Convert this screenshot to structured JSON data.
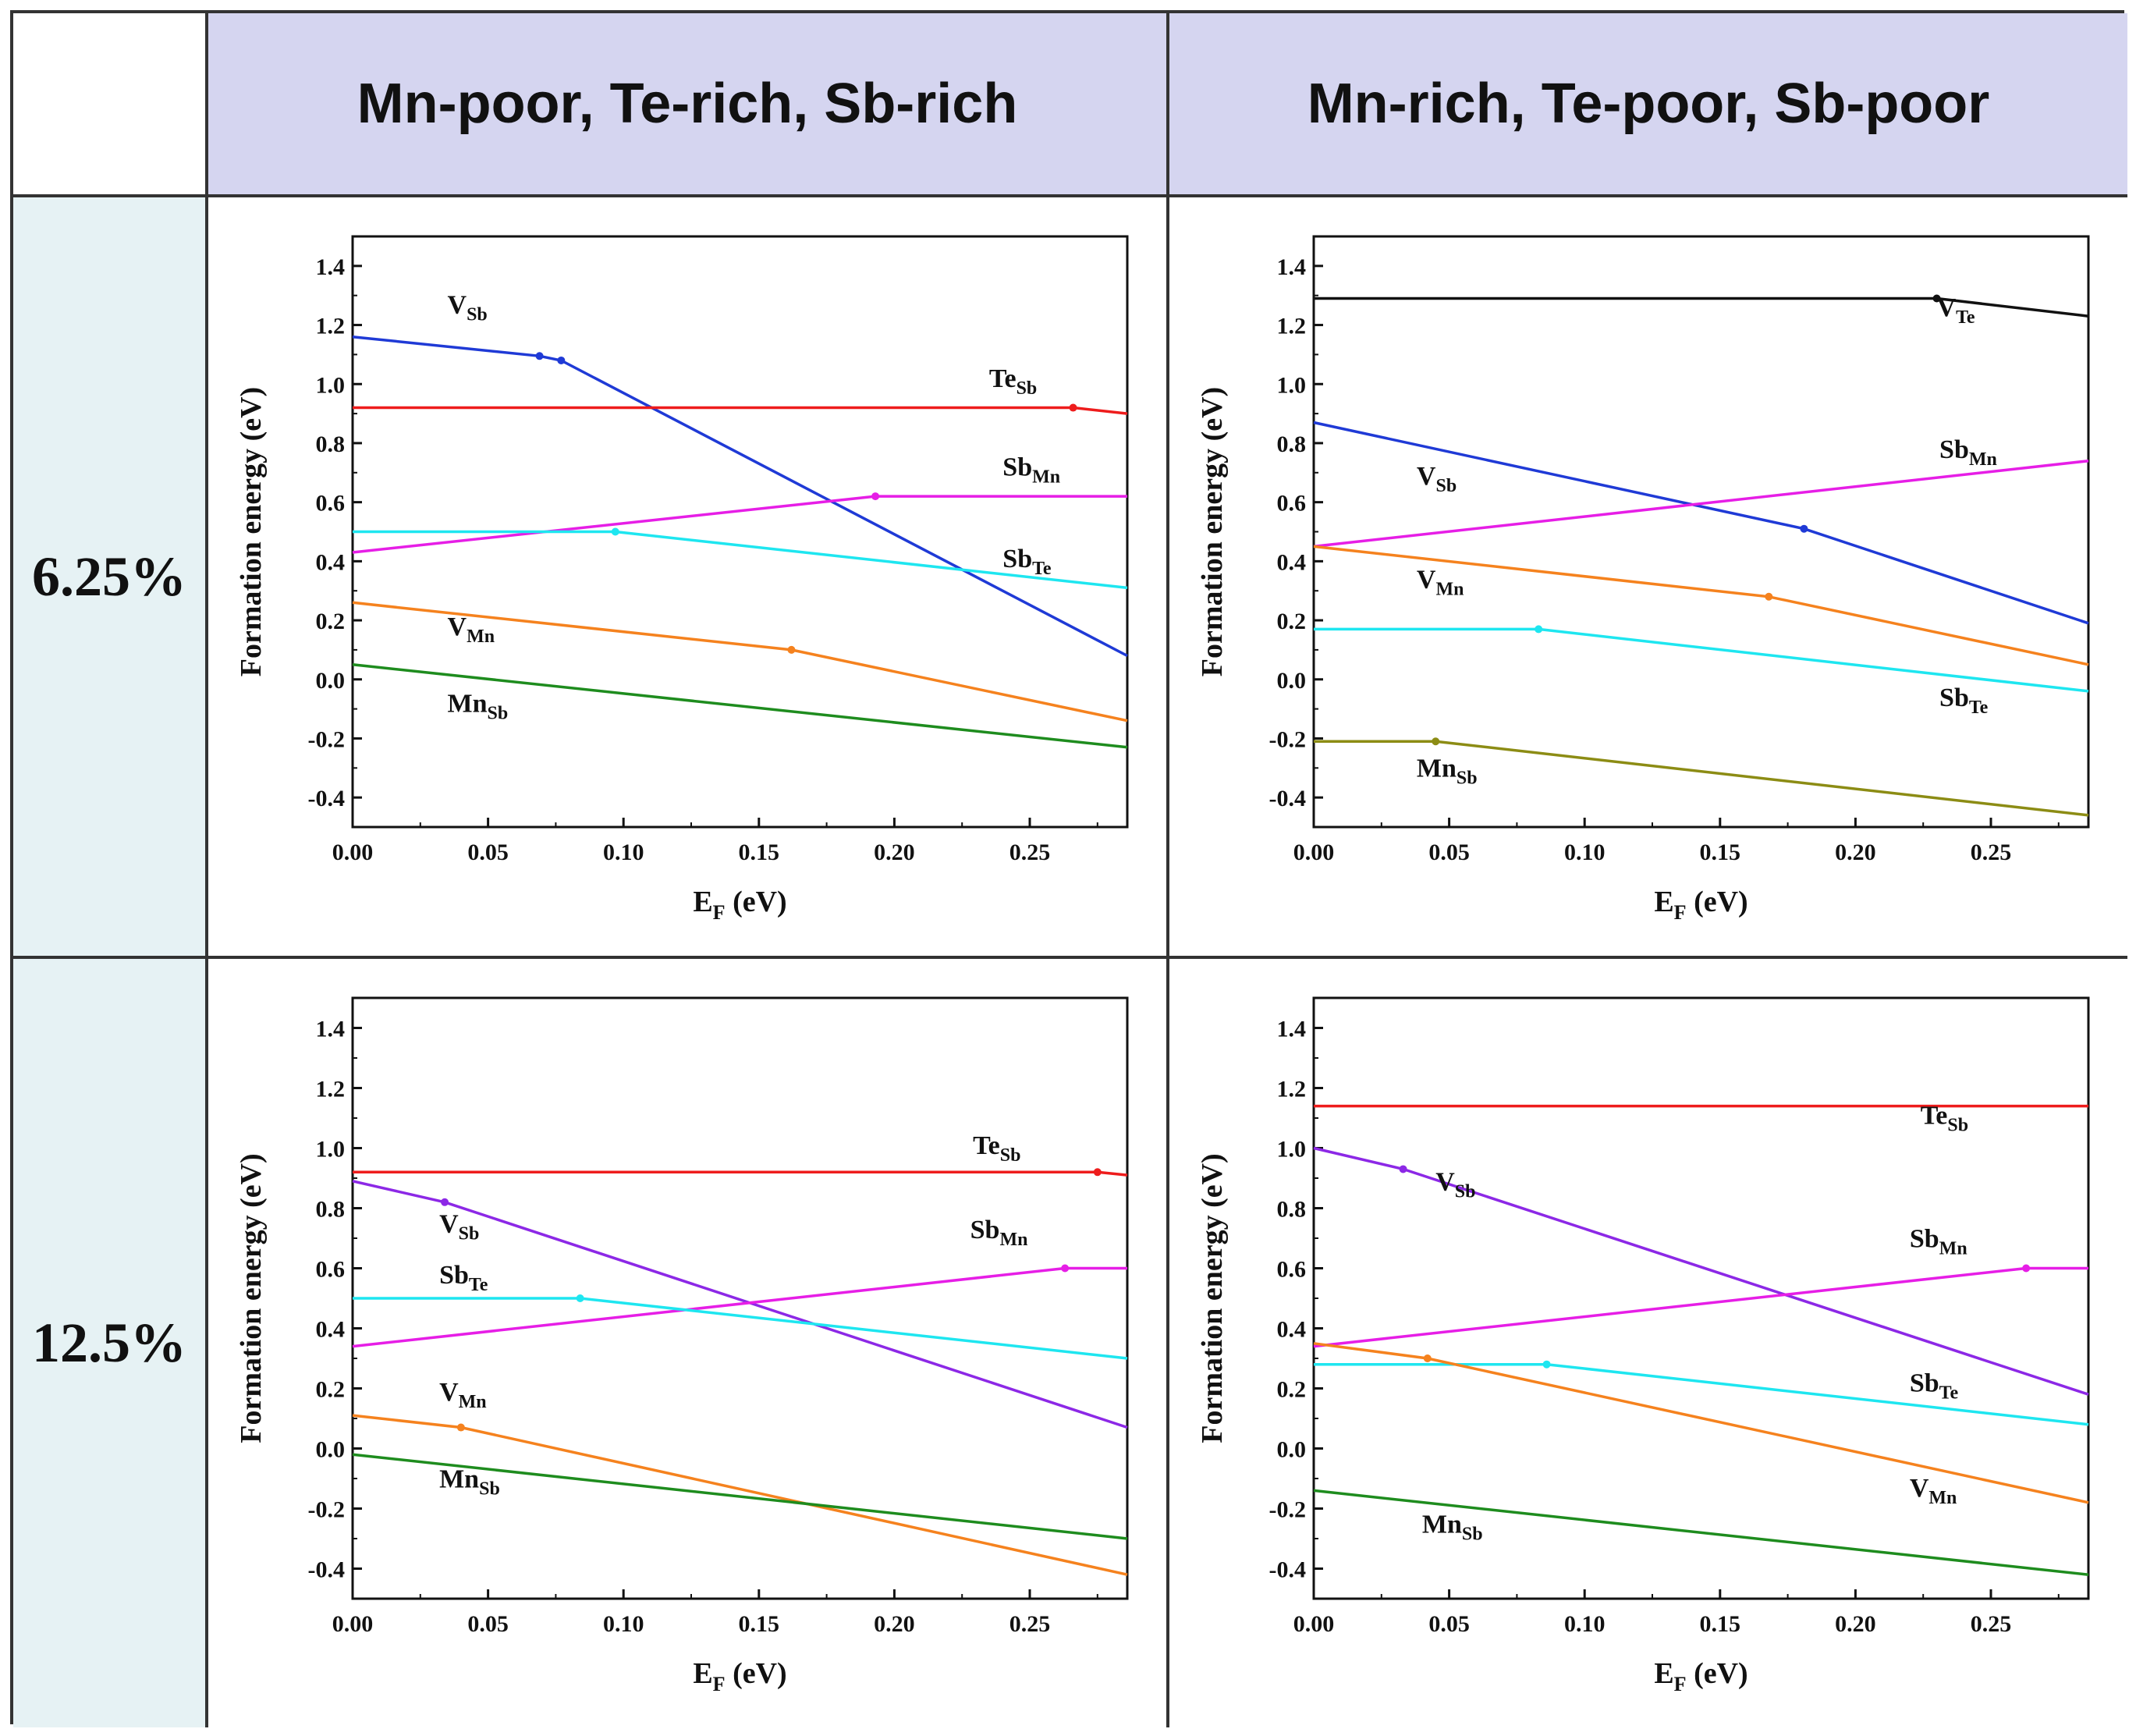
{
  "columns": [
    "Mn-poor, Te-rich, Sb-rich",
    "Mn-rich, Te-poor, Sb-poor"
  ],
  "rows": [
    "6.25%",
    "12.5%"
  ],
  "chart_data": [
    {
      "type": "line",
      "panel": "6.25% / Mn-poor, Te-rich, Sb-rich",
      "xlabel": "E",
      "xlabel_sub": "F",
      "xlabel_unit": "(eV)",
      "ylabel": "Formation energy  (eV)",
      "xlim": [
        0,
        0.286
      ],
      "ylim": [
        -0.5,
        1.5
      ],
      "xticks": [
        0.0,
        0.05,
        0.1,
        0.15,
        0.2,
        0.25
      ],
      "xticklabels": [
        "0.00",
        "0.05",
        "0.10",
        "0.15",
        "0.20",
        "0.25"
      ],
      "yticks": [
        -0.4,
        -0.2,
        0.0,
        0.2,
        0.4,
        0.6,
        0.8,
        1.0,
        1.2,
        1.4
      ],
      "yticklabels": [
        "-0.4",
        "-0.2",
        "0.0",
        "0.2",
        "0.4",
        "0.6",
        "0.8",
        "1.0",
        "1.2",
        "1.4"
      ],
      "series": [
        {
          "name": "V",
          "sub": "Sb",
          "color": "#1f3ad6",
          "x": [
            0,
            0.069,
            0.077,
            0.286
          ],
          "y": [
            1.16,
            1.095,
            1.08,
            0.08
          ],
          "label_at": [
            0.035,
            1.24
          ]
        },
        {
          "name": "Te",
          "sub": "Sb",
          "color": "#ee1c1c",
          "x": [
            0,
            0.266,
            0.286
          ],
          "y": [
            0.92,
            0.92,
            0.9
          ],
          "label_at": [
            0.235,
            0.99
          ]
        },
        {
          "name": "Sb",
          "sub": "Mn",
          "color": "#e61ee6",
          "x": [
            0,
            0.193,
            0.286
          ],
          "y": [
            0.43,
            0.62,
            0.62
          ],
          "label_at": [
            0.24,
            0.69
          ]
        },
        {
          "name": "Sb",
          "sub": "Te",
          "color": "#1ee6f0",
          "x": [
            0,
            0.097,
            0.286
          ],
          "y": [
            0.5,
            0.5,
            0.31
          ],
          "label_at": [
            0.24,
            0.38
          ]
        },
        {
          "name": "V",
          "sub": "Mn",
          "color": "#f5821e",
          "x": [
            0,
            0.162,
            0.286
          ],
          "y": [
            0.26,
            0.1,
            -0.14
          ],
          "label_at": [
            0.035,
            0.15
          ]
        },
        {
          "name": "Mn",
          "sub": "Sb",
          "color": "#1e8c1e",
          "x": [
            0,
            0.286
          ],
          "y": [
            0.05,
            -0.23
          ],
          "label_at": [
            0.035,
            -0.11
          ]
        }
      ]
    },
    {
      "type": "line",
      "panel": "6.25% / Mn-rich, Te-poor, Sb-poor",
      "xlabel": "E",
      "xlabel_sub": "F",
      "xlabel_unit": "(eV)",
      "ylabel": "Formation energy  (eV)",
      "xlim": [
        0,
        0.286
      ],
      "ylim": [
        -0.5,
        1.5
      ],
      "xticks": [
        0.0,
        0.05,
        0.1,
        0.15,
        0.2,
        0.25
      ],
      "xticklabels": [
        "0.00",
        "0.05",
        "0.10",
        "0.15",
        "0.20",
        "0.25"
      ],
      "yticks": [
        -0.4,
        -0.2,
        0.0,
        0.2,
        0.4,
        0.6,
        0.8,
        1.0,
        1.2,
        1.4
      ],
      "yticklabels": [
        "-0.4",
        "-0.2",
        "0.0",
        "0.2",
        "0.4",
        "0.6",
        "0.8",
        "1.0",
        "1.2",
        "1.4"
      ],
      "series": [
        {
          "name": "V",
          "sub": "Te",
          "color": "#111111",
          "x": [
            0,
            0.23,
            0.286
          ],
          "y": [
            1.29,
            1.29,
            1.23
          ],
          "label_at": [
            0.23,
            1.23
          ]
        },
        {
          "name": "V",
          "sub": "Sb",
          "color": "#1f3ad6",
          "x": [
            0,
            0.181,
            0.286
          ],
          "y": [
            0.87,
            0.51,
            0.19
          ],
          "label_at": [
            0.038,
            0.66
          ]
        },
        {
          "name": "Sb",
          "sub": "Mn",
          "color": "#e61ee6",
          "x": [
            0,
            0.286
          ],
          "y": [
            0.45,
            0.74
          ],
          "label_at": [
            0.231,
            0.75
          ]
        },
        {
          "name": "V",
          "sub": "Mn",
          "color": "#f5821e",
          "x": [
            0,
            0.168,
            0.286
          ],
          "y": [
            0.45,
            0.28,
            0.05
          ],
          "label_at": [
            0.038,
            0.31
          ]
        },
        {
          "name": "Sb",
          "sub": "Te",
          "color": "#1ee6f0",
          "x": [
            0,
            0.083,
            0.286
          ],
          "y": [
            0.17,
            0.17,
            -0.04
          ],
          "label_at": [
            0.231,
            -0.09
          ]
        },
        {
          "name": "Mn",
          "sub": "Sb",
          "color": "#8c8c14",
          "x": [
            0,
            0.045,
            0.286
          ],
          "y": [
            -0.21,
            -0.21,
            -0.46
          ],
          "label_at": [
            0.038,
            -0.33
          ]
        }
      ]
    },
    {
      "type": "line",
      "panel": "12.5% / Mn-poor, Te-rich, Sb-rich",
      "xlabel": "E",
      "xlabel_sub": "F",
      "xlabel_unit": "(eV)",
      "ylabel": "Formation energy  (eV)",
      "xlim": [
        0,
        0.286
      ],
      "ylim": [
        -0.5,
        1.5
      ],
      "xticks": [
        0.0,
        0.05,
        0.1,
        0.15,
        0.2,
        0.25
      ],
      "xticklabels": [
        "0.00",
        "0.05",
        "0.10",
        "0.15",
        "0.20",
        "0.25"
      ],
      "yticks": [
        -0.4,
        -0.2,
        0.0,
        0.2,
        0.4,
        0.6,
        0.8,
        1.0,
        1.2,
        1.4
      ],
      "yticklabels": [
        "-0.4",
        "-0.2",
        "0.0",
        "0.2",
        "0.4",
        "0.6",
        "0.8",
        "1.0",
        "1.2",
        "1.4"
      ],
      "series": [
        {
          "name": "Te",
          "sub": "Sb",
          "color": "#ee1c1c",
          "x": [
            0,
            0.275,
            0.286
          ],
          "y": [
            0.92,
            0.92,
            0.91
          ],
          "label_at": [
            0.229,
            0.98
          ]
        },
        {
          "name": "V",
          "sub": "Sb",
          "color": "#8c28e6",
          "x": [
            0,
            0.034,
            0.286
          ],
          "y": [
            0.89,
            0.82,
            0.07
          ],
          "label_at": [
            0.032,
            0.72
          ]
        },
        {
          "name": "Sb",
          "sub": "Mn",
          "color": "#e61ee6",
          "x": [
            0,
            0.263,
            0.286
          ],
          "y": [
            0.34,
            0.6,
            0.6
          ],
          "label_at": [
            0.228,
            0.7
          ]
        },
        {
          "name": "Sb",
          "sub": "Te",
          "color": "#1ee6f0",
          "x": [
            0,
            0.084,
            0.286
          ],
          "y": [
            0.5,
            0.5,
            0.3
          ],
          "label_at": [
            0.032,
            0.55
          ]
        },
        {
          "name": "V",
          "sub": "Mn",
          "color": "#f5821e",
          "x": [
            0,
            0.04,
            0.286
          ],
          "y": [
            0.11,
            0.07,
            -0.42
          ],
          "label_at": [
            0.032,
            0.16
          ]
        },
        {
          "name": "Mn",
          "sub": "Sb",
          "color": "#1e8c1e",
          "x": [
            0,
            0.286
          ],
          "y": [
            -0.02,
            -0.3
          ],
          "label_at": [
            0.032,
            -0.13
          ]
        }
      ]
    },
    {
      "type": "line",
      "panel": "12.5% / Mn-rich, Te-poor, Sb-poor",
      "xlabel": "E",
      "xlabel_sub": "F",
      "xlabel_unit": "(eV)",
      "ylabel": "Formation energy  (eV)",
      "xlim": [
        0,
        0.286
      ],
      "ylim": [
        -0.5,
        1.5
      ],
      "xticks": [
        0.0,
        0.05,
        0.1,
        0.15,
        0.2,
        0.25
      ],
      "xticklabels": [
        "0.00",
        "0.05",
        "0.10",
        "0.15",
        "0.20",
        "0.25"
      ],
      "yticks": [
        -0.4,
        -0.2,
        0.0,
        0.2,
        0.4,
        0.6,
        0.8,
        1.0,
        1.2,
        1.4
      ],
      "yticklabels": [
        "-0.4",
        "-0.2",
        "0.0",
        "0.2",
        "0.4",
        "0.6",
        "0.8",
        "1.0",
        "1.2",
        "1.4"
      ],
      "series": [
        {
          "name": "Te",
          "sub": "Sb",
          "color": "#ee1c1c",
          "x": [
            0,
            0.286
          ],
          "y": [
            1.14,
            1.14
          ],
          "label_at": [
            0.224,
            1.08
          ]
        },
        {
          "name": "V",
          "sub": "Sb",
          "color": "#8c28e6",
          "x": [
            0,
            0.033,
            0.286
          ],
          "y": [
            1.0,
            0.93,
            0.18
          ],
          "label_at": [
            0.045,
            0.86
          ]
        },
        {
          "name": "Sb",
          "sub": "Mn",
          "color": "#e61ee6",
          "x": [
            0,
            0.263,
            0.286
          ],
          "y": [
            0.34,
            0.6,
            0.6
          ],
          "label_at": [
            0.22,
            0.67
          ]
        },
        {
          "name": "Sb",
          "sub": "Te",
          "color": "#1ee6f0",
          "x": [
            0,
            0.086,
            0.286
          ],
          "y": [
            0.28,
            0.28,
            0.08
          ],
          "label_at": [
            0.22,
            0.19
          ]
        },
        {
          "name": "V",
          "sub": "Mn",
          "color": "#f5821e",
          "x": [
            0,
            0.042,
            0.286
          ],
          "y": [
            0.35,
            0.3,
            -0.18
          ],
          "label_at": [
            0.22,
            -0.16
          ]
        },
        {
          "name": "Mn",
          "sub": "Sb",
          "color": "#1e8c1e",
          "x": [
            0,
            0.286
          ],
          "y": [
            -0.14,
            -0.42
          ],
          "label_at": [
            0.04,
            -0.28
          ]
        }
      ]
    }
  ]
}
